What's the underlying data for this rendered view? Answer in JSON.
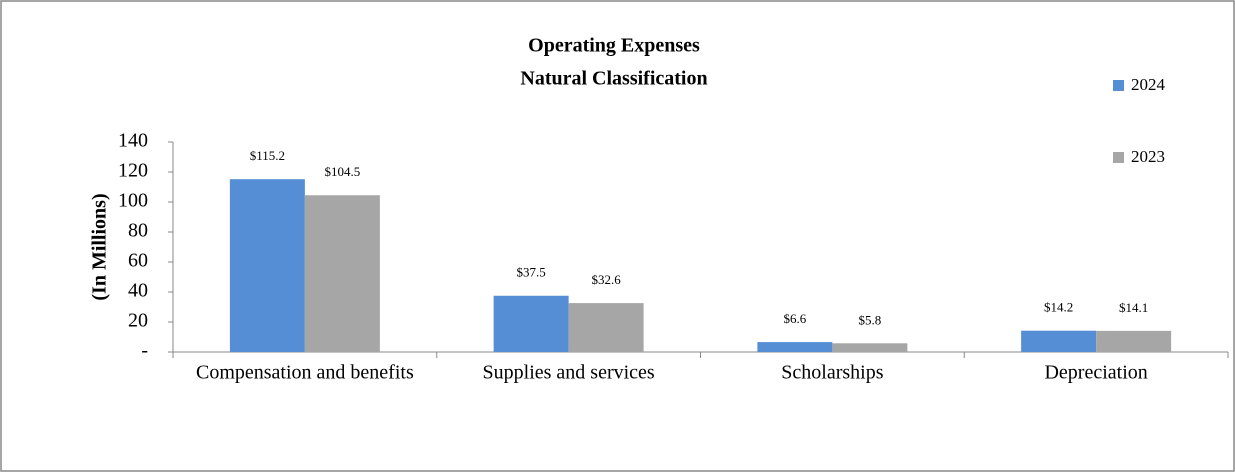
{
  "chart_data": {
    "type": "bar",
    "title": "Operating Expenses",
    "subtitle": "Natural Classification",
    "y_label": "(In Millions)",
    "categories": [
      "Compensation and benefits",
      "Supplies and services",
      "Scholarships",
      "Depreciation"
    ],
    "series": [
      {
        "name": "2024",
        "color": "#558ed5",
        "values": [
          115.2,
          37.5,
          6.6,
          14.2
        ],
        "value_labels": [
          "$115.2",
          "$37.5",
          "$6.6",
          "$14.2"
        ]
      },
      {
        "name": "2023",
        "color": "#a6a6a6",
        "values": [
          104.5,
          32.6,
          5.8,
          14.1
        ],
        "value_labels": [
          "$104.5",
          "$32.6",
          "$5.8",
          "$14.1"
        ]
      }
    ],
    "ylim": [
      0,
      140
    ],
    "yticks": [
      {
        "value": 0,
        "label": "-"
      },
      20,
      40,
      60,
      80,
      100,
      120,
      140
    ],
    "legend": "right"
  }
}
